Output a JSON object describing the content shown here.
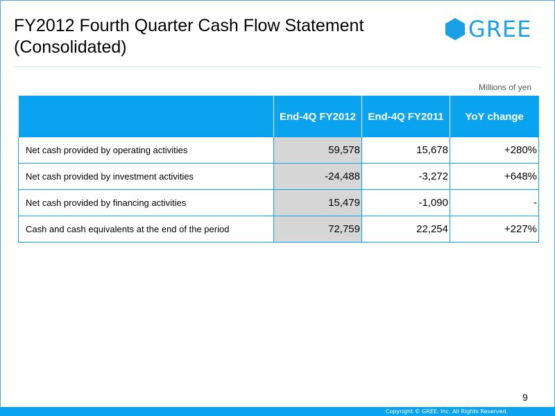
{
  "header": {
    "title_line1": "FY2012 Fourth Quarter Cash Flow Statement",
    "title_line2": "(Consolidated)",
    "logo_text": "GREE",
    "brand_color": "#1aa0e6"
  },
  "table": {
    "unit": "Millions of yen",
    "columns": [
      "",
      "End-4Q FY2012",
      "End-4Q FY2011",
      "YoY change"
    ],
    "rows": [
      {
        "label": "Net cash provided by operating activities",
        "fy2012": "59,578",
        "fy2011": "15,678",
        "yoy": "+280%"
      },
      {
        "label": "Net cash provided by investment activities",
        "fy2012": "-24,488",
        "fy2011": "-3,272",
        "yoy": "+648%"
      },
      {
        "label": "Net cash provided by financing activities",
        "fy2012": "15,479",
        "fy2011": "-1,090",
        "yoy": "-"
      },
      {
        "label": "Cash and cash equivalents at the end of the period",
        "fy2012": "72,759",
        "fy2011": "22,254",
        "yoy": "+227%"
      }
    ]
  },
  "footer": {
    "page_number": "9",
    "copyright": "Copyright © GREE, Inc. All Rights Reserved."
  }
}
